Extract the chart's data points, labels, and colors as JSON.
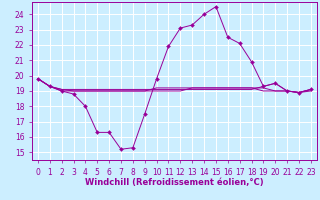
{
  "xlabel": "Windchill (Refroidissement éolien,°C)",
  "x": [
    0,
    1,
    2,
    3,
    4,
    5,
    6,
    7,
    8,
    9,
    10,
    11,
    12,
    13,
    14,
    15,
    16,
    17,
    18,
    19,
    20,
    21,
    22,
    23
  ],
  "line_main": [
    19.8,
    19.3,
    19.0,
    18.8,
    18.0,
    16.3,
    16.3,
    15.2,
    15.3,
    17.5,
    19.8,
    21.9,
    23.1,
    23.3,
    24.0,
    24.5,
    22.5,
    22.1,
    20.9,
    19.3,
    19.5,
    19.0,
    18.9,
    19.1
  ],
  "flat_lines": [
    [
      19.8,
      19.3,
      19.1,
      19.1,
      19.1,
      19.1,
      19.1,
      19.1,
      19.1,
      19.1,
      19.1,
      19.1,
      19.1,
      19.1,
      19.1,
      19.1,
      19.1,
      19.1,
      19.1,
      19.3,
      19.5,
      19.0,
      18.9,
      19.1
    ],
    [
      19.8,
      19.3,
      19.0,
      19.0,
      19.0,
      19.0,
      19.0,
      19.0,
      19.0,
      19.0,
      19.0,
      19.0,
      19.0,
      19.2,
      19.2,
      19.2,
      19.2,
      19.2,
      19.2,
      19.2,
      19.0,
      19.0,
      18.9,
      19.0
    ],
    [
      19.8,
      19.3,
      19.1,
      19.0,
      19.0,
      19.0,
      19.0,
      19.0,
      19.0,
      19.0,
      19.2,
      19.2,
      19.2,
      19.2,
      19.2,
      19.2,
      19.2,
      19.2,
      19.2,
      19.0,
      19.0,
      19.0,
      18.9,
      19.1
    ]
  ],
  "line_color": "#990099",
  "bg_color": "#cceeff",
  "grid_color": "#ffffff",
  "axis_color": "#808080",
  "ylim": [
    14.5,
    24.8
  ],
  "yticks": [
    15,
    16,
    17,
    18,
    19,
    20,
    21,
    22,
    23,
    24
  ],
  "xlim": [
    -0.5,
    23.5
  ],
  "xticks": [
    0,
    1,
    2,
    3,
    4,
    5,
    6,
    7,
    8,
    9,
    10,
    11,
    12,
    13,
    14,
    15,
    16,
    17,
    18,
    19,
    20,
    21,
    22,
    23
  ],
  "tick_fontsize": 5.5,
  "xlabel_fontsize": 6.0
}
